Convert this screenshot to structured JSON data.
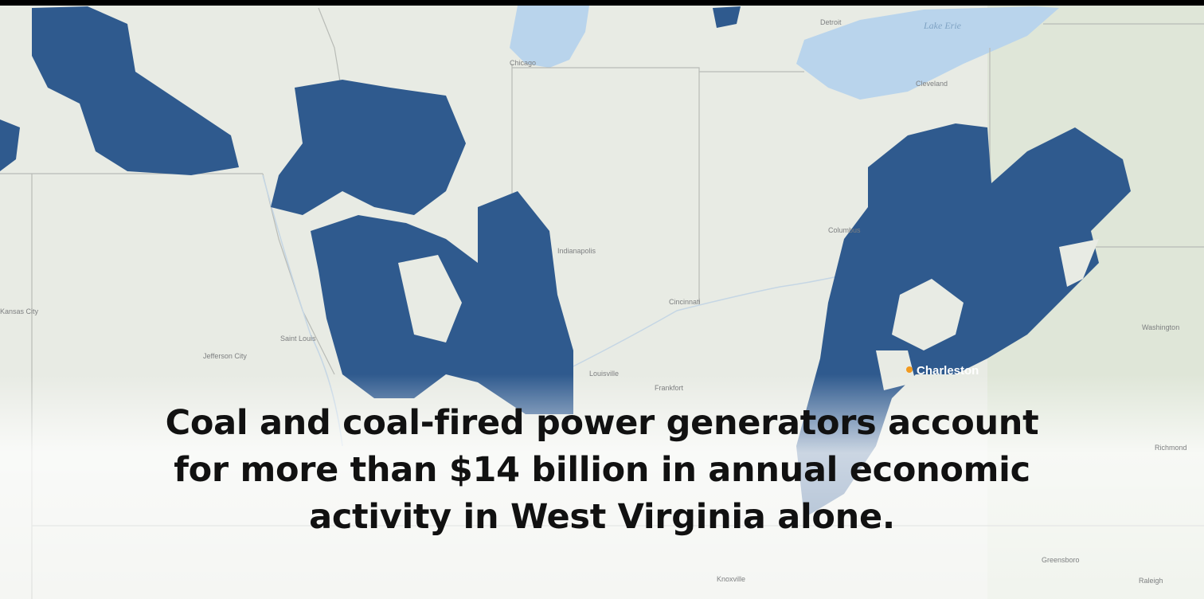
{
  "map": {
    "labels": [
      "Lake Erie",
      "Detroit",
      "Chicago",
      "Cleveland",
      "Indianapolis",
      "Columbus",
      "Cincinnati",
      "Saint Louis",
      "Jefferson City",
      "Kansas City",
      "Louisville",
      "Frankfort",
      "Knoxville",
      "Washington",
      "Richmond",
      "Greensboro",
      "Raleigh"
    ],
    "highlight": "Charleston"
  },
  "headline": {
    "lines": [
      "Coal and coal-fired power generators account",
      "for more than $14 billion in annual economic",
      "activity in West Virginia alone."
    ]
  }
}
